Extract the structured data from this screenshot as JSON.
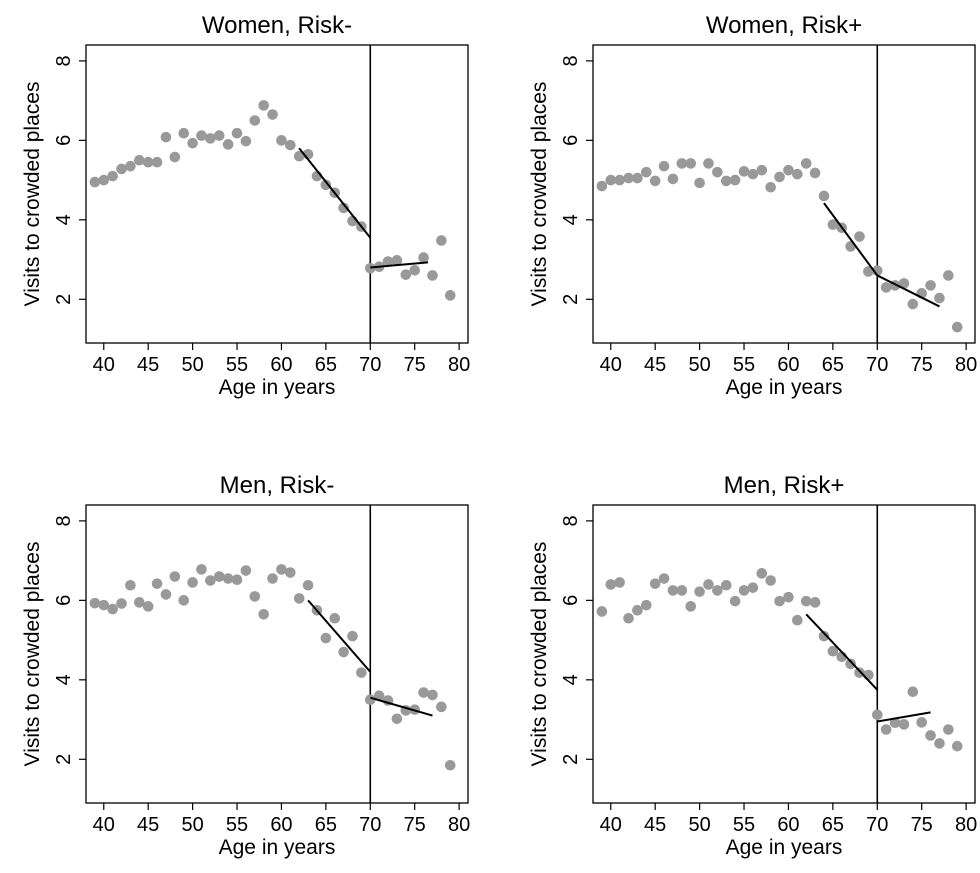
{
  "chart_data": [
    {
      "type": "scatter",
      "title": "Women, Risk-",
      "xlabel": "Age in years",
      "ylabel": "Visits to crowded places",
      "xlim": [
        38,
        81
      ],
      "ylim": [
        0.9,
        8.4
      ],
      "xticks": [
        40,
        45,
        50,
        55,
        60,
        65,
        70,
        75,
        80
      ],
      "yticks": [
        2,
        4,
        6,
        8
      ],
      "cutoff_age": 70,
      "x": [
        39,
        40,
        41,
        42,
        43,
        44,
        45,
        46,
        47,
        48,
        49,
        50,
        51,
        52,
        53,
        54,
        55,
        56,
        57,
        58,
        59,
        60,
        61,
        62,
        63,
        64,
        65,
        66,
        67,
        68,
        69,
        70,
        71,
        72,
        73,
        74,
        75,
        76,
        77,
        78,
        79
      ],
      "y": [
        4.95,
        5.0,
        5.1,
        5.28,
        5.35,
        5.5,
        5.45,
        5.45,
        6.08,
        5.58,
        6.18,
        5.93,
        6.12,
        6.05,
        6.12,
        5.9,
        6.18,
        5.98,
        6.5,
        6.88,
        6.65,
        6.0,
        5.88,
        5.6,
        5.65,
        5.1,
        4.88,
        4.68,
        4.3,
        3.97,
        3.83,
        2.78,
        2.82,
        2.95,
        2.98,
        2.62,
        2.73,
        3.05,
        2.6,
        3.48,
        2.1
      ],
      "fit_lines": [
        {
          "x": [
            62,
            70
          ],
          "y": [
            5.8,
            3.55
          ]
        },
        {
          "x": [
            70,
            76.5
          ],
          "y": [
            2.8,
            2.93
          ]
        }
      ]
    },
    {
      "type": "scatter",
      "title": "Women, Risk+",
      "xlabel": "Age in years",
      "ylabel": "Visits to crowded places",
      "xlim": [
        38,
        81
      ],
      "ylim": [
        0.9,
        8.4
      ],
      "xticks": [
        40,
        45,
        50,
        55,
        60,
        65,
        70,
        75,
        80
      ],
      "yticks": [
        2,
        4,
        6,
        8
      ],
      "cutoff_age": 70,
      "x": [
        39,
        40,
        41,
        42,
        43,
        44,
        45,
        46,
        47,
        48,
        49,
        50,
        51,
        52,
        53,
        54,
        55,
        56,
        57,
        58,
        59,
        60,
        61,
        62,
        63,
        64,
        65,
        66,
        67,
        68,
        69,
        70,
        71,
        72,
        73,
        74,
        75,
        76,
        77,
        78,
        79
      ],
      "y": [
        4.85,
        5.0,
        5.0,
        5.05,
        5.05,
        5.2,
        4.98,
        5.35,
        5.03,
        5.42,
        5.42,
        4.93,
        5.42,
        5.2,
        4.98,
        5.0,
        5.22,
        5.15,
        5.25,
        4.82,
        5.08,
        5.25,
        5.15,
        5.42,
        5.18,
        4.6,
        3.88,
        3.8,
        3.33,
        3.58,
        2.7,
        2.72,
        2.3,
        2.35,
        2.4,
        1.88,
        2.15,
        2.35,
        2.03,
        2.6,
        1.3
      ],
      "fit_lines": [
        {
          "x": [
            64,
            70
          ],
          "y": [
            4.42,
            2.6
          ]
        },
        {
          "x": [
            70,
            77
          ],
          "y": [
            2.6,
            1.82
          ]
        }
      ]
    },
    {
      "type": "scatter",
      "title": "Men, Risk-",
      "xlabel": "Age in years",
      "ylabel": "Visits to crowded places",
      "xlim": [
        38,
        81
      ],
      "ylim": [
        0.9,
        8.4
      ],
      "xticks": [
        40,
        45,
        50,
        55,
        60,
        65,
        70,
        75,
        80
      ],
      "yticks": [
        2,
        4,
        6,
        8
      ],
      "cutoff_age": 70,
      "x": [
        39,
        40,
        41,
        42,
        43,
        44,
        45,
        46,
        47,
        48,
        49,
        50,
        51,
        52,
        53,
        54,
        55,
        56,
        57,
        58,
        59,
        60,
        61,
        62,
        63,
        64,
        65,
        66,
        67,
        68,
        69,
        70,
        71,
        72,
        73,
        74,
        75,
        76,
        77,
        78,
        79
      ],
      "y": [
        5.93,
        5.88,
        5.78,
        5.92,
        6.38,
        5.95,
        5.85,
        6.42,
        6.15,
        6.6,
        6.0,
        6.45,
        6.78,
        6.5,
        6.6,
        6.55,
        6.52,
        6.75,
        6.1,
        5.65,
        6.55,
        6.78,
        6.7,
        6.05,
        6.38,
        5.75,
        5.05,
        5.55,
        4.7,
        5.1,
        4.18,
        3.5,
        3.6,
        3.48,
        3.02,
        3.23,
        3.25,
        3.68,
        3.62,
        3.32,
        1.85
      ],
      "fit_lines": [
        {
          "x": [
            63,
            70
          ],
          "y": [
            6.0,
            4.2
          ]
        },
        {
          "x": [
            70,
            77
          ],
          "y": [
            3.55,
            3.1
          ]
        }
      ]
    },
    {
      "type": "scatter",
      "title": "Men, Risk+",
      "xlabel": "Age in years",
      "ylabel": "Visits to crowded places",
      "xlim": [
        38,
        81
      ],
      "ylim": [
        0.9,
        8.4
      ],
      "xticks": [
        40,
        45,
        50,
        55,
        60,
        65,
        70,
        75,
        80
      ],
      "yticks": [
        2,
        4,
        6,
        8
      ],
      "cutoff_age": 70,
      "x": [
        39,
        40,
        41,
        42,
        43,
        44,
        45,
        46,
        47,
        48,
        49,
        50,
        51,
        52,
        53,
        54,
        55,
        56,
        57,
        58,
        59,
        60,
        61,
        62,
        63,
        64,
        65,
        66,
        67,
        68,
        69,
        70,
        71,
        72,
        73,
        74,
        75,
        76,
        77,
        78,
        79
      ],
      "y": [
        5.72,
        6.4,
        6.45,
        5.55,
        5.75,
        5.88,
        6.42,
        6.55,
        6.25,
        6.25,
        5.85,
        6.22,
        6.4,
        6.25,
        6.38,
        5.98,
        6.25,
        6.32,
        6.68,
        6.5,
        5.98,
        6.08,
        5.5,
        5.98,
        5.95,
        5.1,
        4.72,
        4.58,
        4.4,
        4.18,
        4.12,
        3.12,
        2.75,
        2.92,
        2.88,
        3.7,
        2.93,
        2.6,
        2.4,
        2.75,
        2.33
      ],
      "fit_lines": [
        {
          "x": [
            62,
            70
          ],
          "y": [
            5.65,
            3.75
          ]
        },
        {
          "x": [
            70,
            76
          ],
          "y": [
            2.95,
            3.18
          ]
        }
      ]
    }
  ],
  "style": {
    "marker_color": "#999999",
    "line_color": "#000000"
  }
}
